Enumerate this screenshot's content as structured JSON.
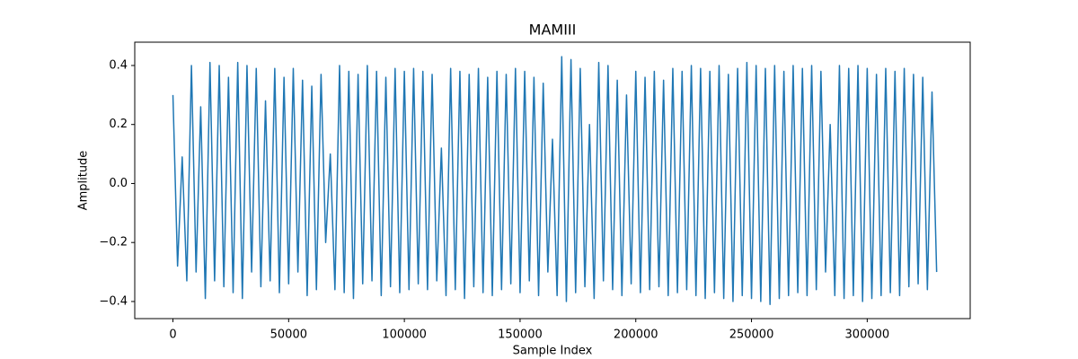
{
  "chart_data": {
    "type": "line",
    "title": "MAMIII",
    "x_label": "Sample Index",
    "y_label": "Amplitude",
    "color": "#1f77b4",
    "x": [
      0,
      2000,
      4000,
      6000,
      8000,
      10000,
      12000,
      14000,
      16000,
      18000,
      20000,
      22000,
      24000,
      26000,
      28000,
      30000,
      32000,
      34000,
      36000,
      38000,
      40000,
      42000,
      44000,
      46000,
      48000,
      50000,
      52000,
      54000,
      56000,
      58000,
      60000,
      62000,
      64000,
      66000,
      68000,
      70000,
      72000,
      74000,
      76000,
      78000,
      80000,
      82000,
      84000,
      86000,
      88000,
      90000,
      92000,
      94000,
      96000,
      98000,
      100000,
      102000,
      104000,
      106000,
      108000,
      110000,
      112000,
      114000,
      116000,
      118000,
      120000,
      122000,
      124000,
      126000,
      128000,
      130000,
      132000,
      134000,
      136000,
      138000,
      140000,
      142000,
      144000,
      146000,
      148000,
      150000,
      152000,
      154000,
      156000,
      158000,
      160000,
      162000,
      164000,
      166000,
      168000,
      170000,
      172000,
      174000,
      176000,
      178000,
      180000,
      182000,
      184000,
      186000,
      188000,
      190000,
      192000,
      194000,
      196000,
      198000,
      200000,
      202000,
      204000,
      206000,
      208000,
      210000,
      212000,
      214000,
      216000,
      218000,
      220000,
      222000,
      224000,
      226000,
      228000,
      230000,
      232000,
      234000,
      236000,
      238000,
      240000,
      242000,
      244000,
      246000,
      248000,
      250000,
      252000,
      254000,
      256000,
      258000,
      260000,
      262000,
      264000,
      266000,
      268000,
      270000,
      272000,
      274000,
      276000,
      278000,
      280000,
      282000,
      284000,
      286000,
      288000,
      290000,
      292000,
      294000,
      296000,
      298000,
      300000,
      302000,
      304000,
      306000,
      308000,
      310000,
      312000,
      314000,
      316000,
      318000,
      320000,
      322000,
      324000,
      326000,
      328000,
      330000
    ],
    "values": [
      0.3,
      -0.28,
      0.09,
      -0.33,
      0.4,
      -0.3,
      0.26,
      -0.39,
      0.41,
      -0.33,
      0.4,
      -0.35,
      0.36,
      -0.37,
      0.41,
      -0.39,
      0.4,
      -0.3,
      0.39,
      -0.35,
      0.28,
      -0.33,
      0.39,
      -0.37,
      0.36,
      -0.34,
      0.39,
      -0.3,
      0.35,
      -0.38,
      0.33,
      -0.36,
      0.37,
      -0.2,
      0.1,
      -0.36,
      0.4,
      -0.37,
      0.38,
      -0.39,
      0.37,
      -0.34,
      0.4,
      -0.33,
      0.38,
      -0.38,
      0.36,
      -0.35,
      0.39,
      -0.37,
      0.38,
      -0.36,
      0.39,
      -0.34,
      0.38,
      -0.36,
      0.37,
      -0.33,
      0.12,
      -0.38,
      0.39,
      -0.36,
      0.38,
      -0.39,
      0.37,
      -0.35,
      0.39,
      -0.37,
      0.36,
      -0.38,
      0.38,
      -0.36,
      0.37,
      -0.34,
      0.39,
      -0.37,
      0.38,
      -0.33,
      0.36,
      -0.38,
      0.34,
      -0.3,
      0.15,
      -0.38,
      0.43,
      -0.4,
      0.42,
      -0.37,
      0.39,
      -0.35,
      0.2,
      -0.39,
      0.41,
      -0.33,
      0.4,
      -0.36,
      0.35,
      -0.38,
      0.3,
      -0.34,
      0.38,
      -0.37,
      0.36,
      -0.36,
      0.38,
      -0.35,
      0.35,
      -0.38,
      0.39,
      -0.37,
      0.38,
      -0.36,
      0.4,
      -0.38,
      0.39,
      -0.39,
      0.38,
      -0.37,
      0.4,
      -0.39,
      0.37,
      -0.4,
      0.39,
      -0.38,
      0.41,
      -0.39,
      0.4,
      -0.4,
      0.39,
      -0.41,
      0.4,
      -0.39,
      0.38,
      -0.38,
      0.4,
      -0.37,
      0.39,
      -0.38,
      0.4,
      -0.36,
      0.38,
      -0.3,
      0.2,
      -0.38,
      0.4,
      -0.39,
      0.39,
      -0.38,
      0.4,
      -0.4,
      0.39,
      -0.39,
      0.37,
      -0.38,
      0.39,
      -0.37,
      0.38,
      -0.38,
      0.39,
      -0.35,
      0.37,
      -0.34,
      0.36,
      -0.36,
      0.31,
      -0.3
    ],
    "xlim": [
      -16500,
      344500
    ],
    "ylim": [
      -0.458,
      0.479
    ],
    "xticks": [
      0,
      50000,
      100000,
      150000,
      200000,
      250000,
      300000
    ],
    "yticks": [
      {
        "value": -0.4,
        "label": "−0.4"
      },
      {
        "value": -0.2,
        "label": "−0.2"
      },
      {
        "value": 0,
        "label": "0.0"
      },
      0.2,
      0.4
    ]
  }
}
